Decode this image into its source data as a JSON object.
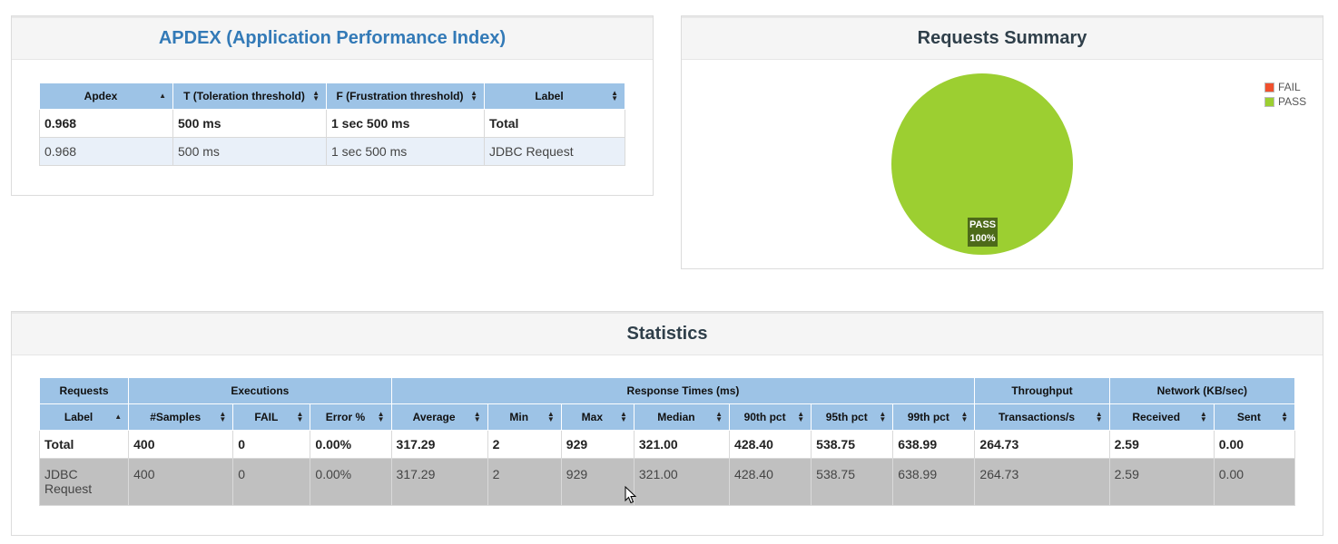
{
  "apdex": {
    "title": "APDEX (Application Performance Index)",
    "headers": [
      "Apdex",
      "T (Toleration threshold)",
      "F (Frustration threshold)",
      "Label"
    ],
    "total": [
      "0.968",
      "500 ms",
      "1 sec 500 ms",
      "Total"
    ],
    "rows": [
      [
        "0.968",
        "500 ms",
        "1 sec 500 ms",
        "JDBC Request"
      ]
    ]
  },
  "summary": {
    "title": "Requests Summary",
    "legend": [
      {
        "label": "FAIL",
        "color": "#f0502d"
      },
      {
        "label": "PASS",
        "color": "#9ccf31"
      }
    ],
    "pie_label_name": "PASS",
    "pie_label_pct": "100%"
  },
  "chart_data": {
    "type": "pie",
    "categories": [
      "FAIL",
      "PASS"
    ],
    "values": [
      0,
      100
    ],
    "title": "Requests Summary",
    "legend": "top-right"
  },
  "stats": {
    "title": "Statistics",
    "groups": [
      "Requests",
      "Executions",
      "Response Times (ms)",
      "Throughput",
      "Network (KB/sec)"
    ],
    "headers": [
      "Label",
      "#Samples",
      "FAIL",
      "Error %",
      "Average",
      "Min",
      "Max",
      "Median",
      "90th pct",
      "95th pct",
      "99th pct",
      "Transactions/s",
      "Received",
      "Sent"
    ],
    "total": [
      "Total",
      "400",
      "0",
      "0.00%",
      "317.29",
      "2",
      "929",
      "321.00",
      "428.40",
      "538.75",
      "638.99",
      "264.73",
      "2.59",
      "0.00"
    ],
    "rows": [
      [
        "JDBC Request",
        "400",
        "0",
        "0.00%",
        "317.29",
        "2",
        "929",
        "321.00",
        "428.40",
        "538.75",
        "638.99",
        "264.73",
        "2.59",
        "0.00"
      ]
    ]
  }
}
